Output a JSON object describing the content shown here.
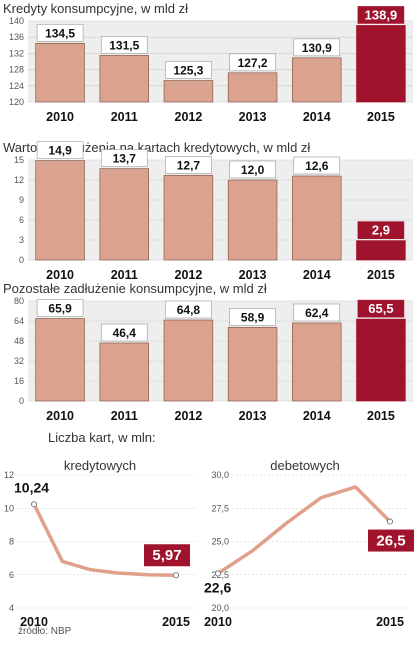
{
  "colors": {
    "bar": "#d9a38f",
    "bar_stroke": "#8a5a4a",
    "highlight": "#a0132c",
    "panel": "#eeeeee",
    "grid": "#cccccc",
    "line": "#e0a08c"
  },
  "chart_data": [
    {
      "type": "bar",
      "title": "Kredyty konsumpcyjne, w mld zł",
      "categories": [
        "2010",
        "2011",
        "2012",
        "2013",
        "2014",
        "2015"
      ],
      "values": [
        134.5,
        131.5,
        125.3,
        127.2,
        130.9,
        138.9
      ],
      "value_labels": [
        "134,5",
        "131,5",
        "125,3",
        "127,2",
        "130,9",
        "138,9"
      ],
      "ylim": [
        120,
        140
      ],
      "yticks": [
        "120",
        "124",
        "128",
        "132",
        "136",
        "140"
      ],
      "highlight_index": 5,
      "grid": true
    },
    {
      "type": "bar",
      "title": "Wartość zadłużenia na kartach kredytowych, w mld zł",
      "categories": [
        "2010",
        "2011",
        "2012",
        "2013",
        "2014",
        "2015"
      ],
      "values": [
        14.9,
        13.7,
        12.7,
        12.0,
        12.6,
        2.9
      ],
      "value_labels": [
        "14,9",
        "13,7",
        "12,7",
        "12,0",
        "12,6",
        "2,9"
      ],
      "ylim": [
        0,
        15
      ],
      "yticks": [
        "0",
        "3",
        "6",
        "9",
        "12",
        "15"
      ],
      "highlight_index": 5,
      "grid": true
    },
    {
      "type": "bar",
      "title": "Pozostałe zadłużenie konsumpcyjne, w mld zł",
      "categories": [
        "2010",
        "2011",
        "2012",
        "2013",
        "2014",
        "2015"
      ],
      "values": [
        65.9,
        46.4,
        64.8,
        58.9,
        62.4,
        65.5
      ],
      "value_labels": [
        "65,9",
        "46,4",
        "64,8",
        "58,9",
        "62,4",
        "65,5"
      ],
      "ylim": [
        0,
        80
      ],
      "yticks": [
        "0",
        "16",
        "32",
        "48",
        "64",
        "80"
      ],
      "highlight_index": 5,
      "grid": true
    },
    {
      "type": "line",
      "group_title": "Liczba kart, w mln:",
      "title": "kredytowych",
      "x": [
        2010,
        2011,
        2012,
        2013,
        2014,
        2015
      ],
      "values": [
        10.24,
        6.8,
        6.3,
        6.1,
        6.0,
        5.97
      ],
      "xticks": [
        "2010",
        "2015"
      ],
      "ylim": [
        4,
        12
      ],
      "yticks": [
        "4",
        "6",
        "8",
        "10",
        "12"
      ],
      "start_label": "10,24",
      "end_label": "5,97",
      "grid": true
    },
    {
      "type": "line",
      "title": "debetowych",
      "x": [
        2010,
        2011,
        2012,
        2013,
        2014,
        2015
      ],
      "values": [
        22.6,
        24.3,
        26.4,
        28.3,
        29.1,
        26.5
      ],
      "xticks": [
        "2010",
        "2015"
      ],
      "ylim": [
        20,
        30
      ],
      "yticks": [
        "20,0",
        "22,5",
        "25,0",
        "27,5",
        "30,0"
      ],
      "start_label": "22,6",
      "end_label": "26,5",
      "grid": true
    }
  ],
  "source": "źródło: NBP"
}
